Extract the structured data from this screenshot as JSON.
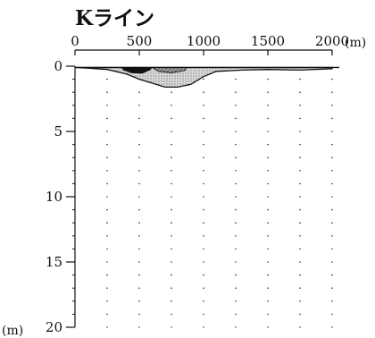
{
  "title": "Kライン",
  "x_axis": {
    "ticks": [
      "0",
      "500",
      "1000",
      "1500",
      "2000"
    ],
    "unit_label": "(m)"
  },
  "y_axis": {
    "ticks": [
      "0",
      "5",
      "10",
      "15",
      "20"
    ],
    "unit_label": "(m)"
  },
  "profile": {
    "x_range_m": [
      0,
      2000
    ],
    "depth_range_m": [
      0,
      20
    ],
    "surface_depth_m": 0.1,
    "total_profile": [
      [
        0,
        0.1
      ],
      [
        100,
        0.15
      ],
      [
        250,
        0.25
      ],
      [
        400,
        0.6
      ],
      [
        500,
        1.0
      ],
      [
        600,
        1.3
      ],
      [
        700,
        1.6
      ],
      [
        800,
        1.6
      ],
      [
        900,
        1.4
      ],
      [
        1000,
        0.8
      ],
      [
        1100,
        0.4
      ],
      [
        1300,
        0.3
      ],
      [
        1500,
        0.25
      ],
      [
        1750,
        0.3
      ],
      [
        2000,
        0.2
      ]
    ],
    "dark_layer": [
      [
        360,
        0.1
      ],
      [
        600,
        0.1
      ],
      [
        580,
        0.3
      ],
      [
        520,
        0.55
      ],
      [
        440,
        0.5
      ],
      [
        380,
        0.3
      ]
    ],
    "hatched_layer": [
      [
        600,
        0.1
      ],
      [
        870,
        0.1
      ],
      [
        850,
        0.35
      ],
      [
        750,
        0.5
      ],
      [
        650,
        0.4
      ]
    ]
  },
  "colors": {
    "ink": "#111111",
    "dotted_fill": "#d6d6d6",
    "dark_fill": "#111111",
    "hatched_fill": "#8a8a8a"
  }
}
